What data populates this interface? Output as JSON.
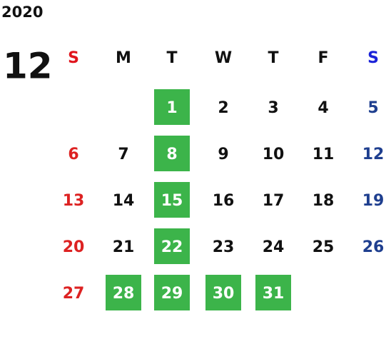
{
  "year": "2020",
  "month": "12",
  "weekdays": [
    {
      "label": "S",
      "color": "#e0141c"
    },
    {
      "label": "M",
      "color": "#111111"
    },
    {
      "label": "T",
      "color": "#111111"
    },
    {
      "label": "W",
      "color": "#111111"
    },
    {
      "label": "T",
      "color": "#111111"
    },
    {
      "label": "F",
      "color": "#111111"
    },
    {
      "label": "S",
      "color": "#1a22d8"
    }
  ],
  "day_colors": [
    "#dd2222",
    "#111111",
    "#111111",
    "#111111",
    "#111111",
    "#111111",
    "#1f3f8f"
  ],
  "highlight_color": "#3cb44a",
  "highlight_text_color": "#ffffff",
  "weeks": [
    [
      null,
      null,
      {
        "day": 1,
        "highlight": true
      },
      {
        "day": 2
      },
      {
        "day": 3
      },
      {
        "day": 4
      },
      {
        "day": 5
      }
    ],
    [
      {
        "day": 6
      },
      {
        "day": 7
      },
      {
        "day": 8,
        "highlight": true
      },
      {
        "day": 9
      },
      {
        "day": 10
      },
      {
        "day": 11
      },
      {
        "day": 12
      }
    ],
    [
      {
        "day": 13
      },
      {
        "day": 14
      },
      {
        "day": 15,
        "highlight": true
      },
      {
        "day": 16
      },
      {
        "day": 17
      },
      {
        "day": 18
      },
      {
        "day": 19
      }
    ],
    [
      {
        "day": 20
      },
      {
        "day": 21
      },
      {
        "day": 22,
        "highlight": true
      },
      {
        "day": 23
      },
      {
        "day": 24
      },
      {
        "day": 25
      },
      {
        "day": 26
      }
    ],
    [
      {
        "day": 27
      },
      {
        "day": 28,
        "highlight": true
      },
      {
        "day": 29,
        "highlight": true
      },
      {
        "day": 30,
        "highlight": true
      },
      {
        "day": 31,
        "highlight": true
      },
      null,
      null
    ]
  ]
}
